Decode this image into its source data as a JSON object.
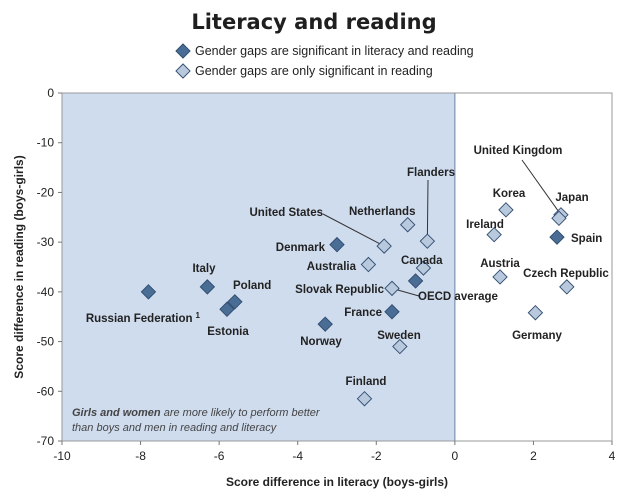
{
  "chart_data": {
    "type": "scatter",
    "title": "Literacy and reading",
    "xlabel": "Score difference in literacy (boys-girls)",
    "ylabel": "Score difference in reading (boys-girls)",
    "xlim": [
      -10,
      4
    ],
    "ylim": [
      -70,
      0
    ],
    "xticks": [
      -10,
      -8,
      -6,
      -4,
      -2,
      0,
      2,
      4
    ],
    "yticks": [
      0,
      -10,
      -20,
      -30,
      -40,
      -50,
      -60,
      -70
    ],
    "grid": false,
    "shaded_region_x": [
      -10,
      0
    ],
    "legend_position": "top",
    "legend": [
      {
        "key": "significant_both",
        "label": "Gender gaps are  significant in literacy and reading"
      },
      {
        "key": "reading_only",
        "label": "Gender gaps are only significant in reading"
      }
    ],
    "colors": {
      "significant_both": "#4a6d96",
      "reading_only": "#b9c9dd",
      "marker_stroke": "#2f4b6d",
      "shade": "#cfdcee",
      "divider": "#7f93b0"
    },
    "annotation": {
      "bold": "Girls and women",
      "rest1": " are more likely to perform better",
      "line2": "than boys and men in reading and literacy"
    },
    "series": [
      {
        "key": "significant_both",
        "points": [
          {
            "label": "Russian Federation",
            "sup": "1",
            "x": -7.8,
            "y": -40
          },
          {
            "label": "Italy",
            "x": -6.3,
            "y": -39
          },
          {
            "label": "Poland",
            "x": -5.6,
            "y": -42
          },
          {
            "label": "Estonia",
            "x": -5.8,
            "y": -43.5
          },
          {
            "label": "Denmark",
            "x": -3.0,
            "y": -30.5
          },
          {
            "label": "Norway",
            "x": -3.3,
            "y": -46.5
          },
          {
            "label": "France",
            "x": -1.6,
            "y": -44
          },
          {
            "label": "Spain",
            "x": 2.6,
            "y": -29
          },
          {
            "label": "Slovak Republic",
            "x": -1.0,
            "y": -37.8
          }
        ]
      },
      {
        "key": "reading_only",
        "points": [
          {
            "label": "United States",
            "x": -1.8,
            "y": -30.8
          },
          {
            "label": "Netherlands",
            "x": -1.2,
            "y": -26.5
          },
          {
            "label": "Flanders",
            "x": -0.7,
            "y": -29.8
          },
          {
            "label": "Australia",
            "x": -2.2,
            "y": -34.5
          },
          {
            "label": "Canada",
            "x": -0.8,
            "y": -35.2
          },
          {
            "label": "OECD average",
            "x": -1.6,
            "y": -39.3
          },
          {
            "label": "Sweden",
            "x": -1.4,
            "y": -51
          },
          {
            "label": "Finland",
            "x": -2.3,
            "y": -61.5
          },
          {
            "label": "United Kingdom",
            "x": 2.7,
            "y": -24.5
          },
          {
            "label": "Korea",
            "x": 1.3,
            "y": -23.5
          },
          {
            "label": "Japan",
            "x": 2.65,
            "y": -25.2
          },
          {
            "label": "Ireland",
            "x": 1.0,
            "y": -28.5
          },
          {
            "label": "Austria",
            "x": 1.15,
            "y": -37
          },
          {
            "label": "Czech Republic",
            "x": 2.85,
            "y": -39
          },
          {
            "label": "Germany",
            "x": 2.05,
            "y": -44.2
          }
        ]
      }
    ]
  }
}
